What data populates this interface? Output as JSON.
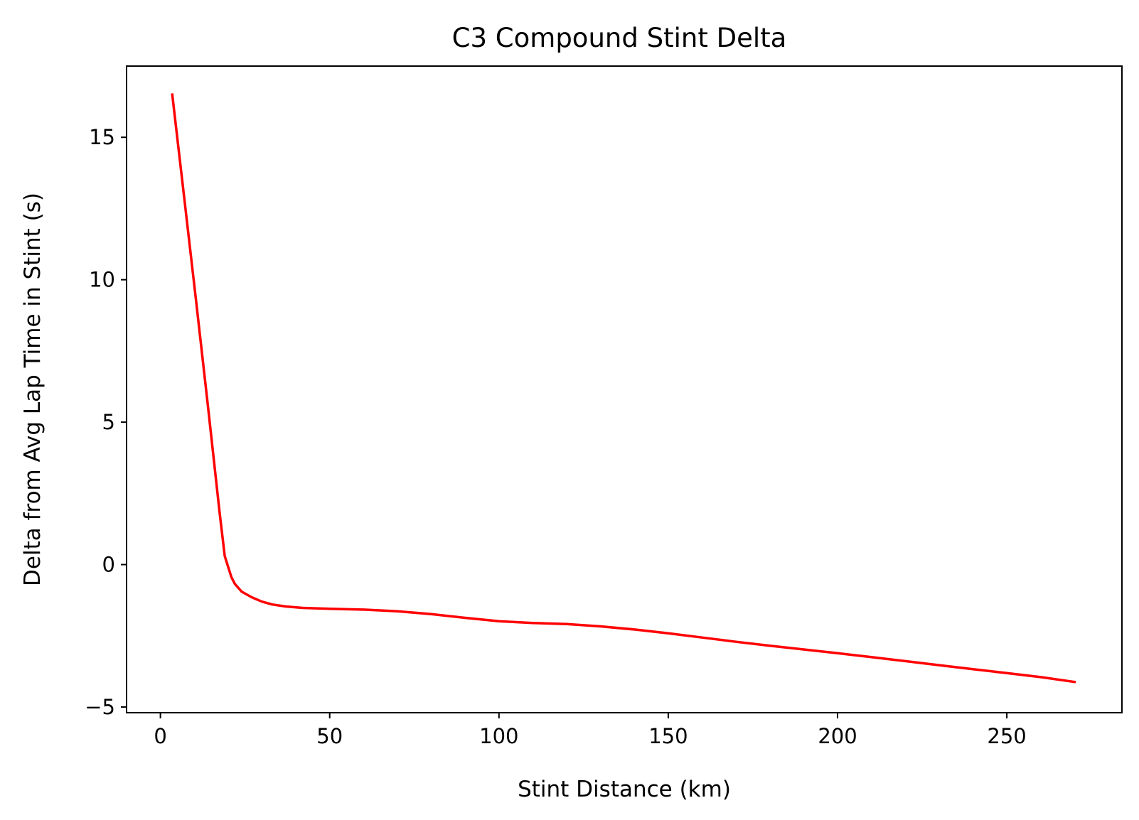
{
  "chart_data": {
    "type": "line",
    "title": "C3 Compound Stint Delta",
    "xlabel": "Stint Distance (km)",
    "ylabel": "Delta from Avg Lap Time in Stint (s)",
    "xlim": [
      -10,
      284
    ],
    "ylim": [
      -5.2,
      17.5
    ],
    "x_ticks": [
      0,
      50,
      100,
      150,
      200,
      250
    ],
    "y_ticks": [
      -5,
      0,
      5,
      10,
      15
    ],
    "x_tick_labels": [
      "0",
      "50",
      "100",
      "150",
      "200",
      "250"
    ],
    "y_tick_labels": [
      "−5",
      "0",
      "5",
      "10",
      "15"
    ],
    "grid": false,
    "legend": "none",
    "series": [
      {
        "color": "#ff0000",
        "x": [
          3.5,
          7,
          10.5,
          14,
          17.5,
          19,
          20.2,
          20.6,
          21,
          22,
          24,
          27,
          30,
          33,
          37,
          42,
          50,
          60,
          70,
          80,
          90,
          100,
          110,
          120,
          130,
          140,
          150,
          160,
          170,
          180,
          190,
          200,
          210,
          220,
          230,
          240,
          250,
          260,
          270
        ],
        "y": [
          16.5,
          12.9,
          9.3,
          5.6,
          1.8,
          0.3,
          -0.15,
          -0.3,
          -0.45,
          -0.68,
          -0.95,
          -1.15,
          -1.3,
          -1.4,
          -1.47,
          -1.52,
          -1.55,
          -1.58,
          -1.64,
          -1.74,
          -1.87,
          -1.99,
          -2.05,
          -2.09,
          -2.17,
          -2.28,
          -2.41,
          -2.56,
          -2.71,
          -2.85,
          -2.98,
          -3.11,
          -3.25,
          -3.39,
          -3.53,
          -3.67,
          -3.81,
          -3.95,
          -4.12
        ]
      }
    ]
  }
}
